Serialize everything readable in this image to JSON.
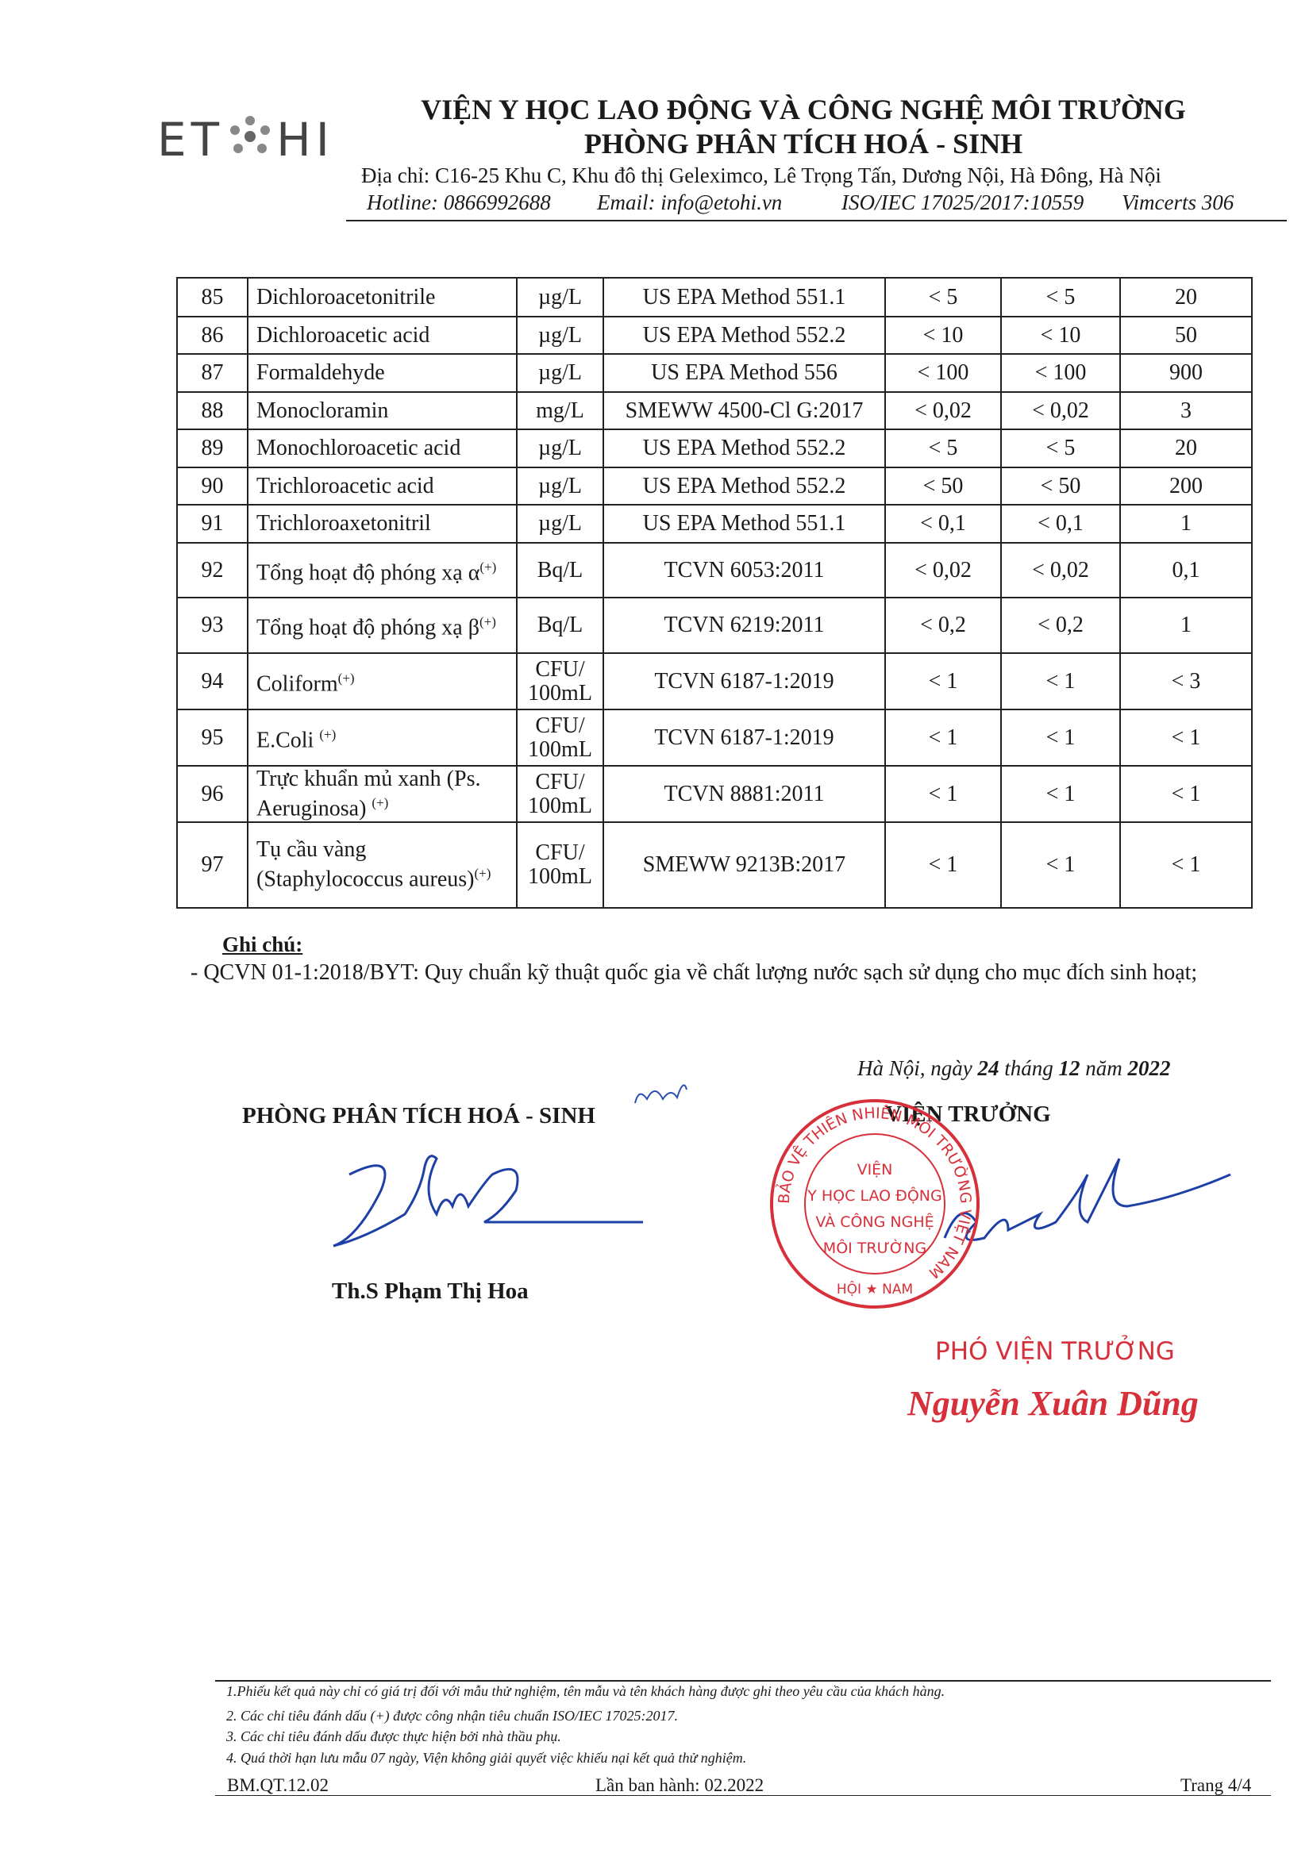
{
  "header": {
    "logo_left": "ET",
    "logo_right": "HI",
    "title": "VIỆN Y HỌC LAO ĐỘNG VÀ CÔNG NGHỆ MÔI TRƯỜNG",
    "subtitle": "PHÒNG PHÂN TÍCH HOÁ - SINH",
    "address": "Địa chỉ: C16-25 Khu C, Khu đô thị Geleximco, Lê Trọng Tấn, Dương Nội, Hà Đông, Hà Nội",
    "hotline": "Hotline: 0866992688",
    "email": "Email: info@etohi.vn",
    "iso": "ISO/IEC 17025/2017:10559",
    "vimcerts": "Vimcerts 306"
  },
  "table": {
    "rows": [
      {
        "no": "85",
        "name": "Dichloroacetonitrile",
        "unit": "µg/L",
        "method": "US EPA Method 551.1",
        "result1": "< 5",
        "result2": "< 5",
        "limit": "20"
      },
      {
        "no": "86",
        "name": "Dichloroacetic acid",
        "unit": "µg/L",
        "method": "US EPA Method 552.2",
        "result1": "< 10",
        "result2": "< 10",
        "limit": "50"
      },
      {
        "no": "87",
        "name": "Formaldehyde",
        "unit": "µg/L",
        "method": "US EPA Method 556",
        "result1": "< 100",
        "result2": "< 100",
        "limit": "900"
      },
      {
        "no": "88",
        "name": "Monocloramin",
        "unit": "mg/L",
        "method": "SMEWW 4500-Cl G:2017",
        "result1": "< 0,02",
        "result2": "< 0,02",
        "limit": "3"
      },
      {
        "no": "89",
        "name": "Monochloroacetic acid",
        "unit": "µg/L",
        "method": "US EPA Method 552.2",
        "result1": "< 5",
        "result2": "< 5",
        "limit": "20"
      },
      {
        "no": "90",
        "name": "Trichloroacetic acid",
        "unit": "µg/L",
        "method": "US EPA Method 552.2",
        "result1": "< 50",
        "result2": "< 50",
        "limit": "200"
      },
      {
        "no": "91",
        "name": "Trichloroaxetonitril",
        "unit": "µg/L",
        "method": "US EPA Method 551.1",
        "result1": "< 0,1",
        "result2": "< 0,1",
        "limit": "1"
      },
      {
        "no": "92",
        "name": "Tổng hoạt độ phóng xạ α",
        "sup": "(+)",
        "unit": "Bq/L",
        "method": "TCVN 6053:2011",
        "result1": "< 0,02",
        "result2": "< 0,02",
        "limit": "0,1"
      },
      {
        "no": "93",
        "name": "Tổng hoạt độ phóng xạ β",
        "sup": "(+)",
        "unit": "Bq/L",
        "method": "TCVN 6219:2011",
        "result1": "< 0,2",
        "result2": "< 0,2",
        "limit": "1"
      },
      {
        "no": "94",
        "name": "Coliform",
        "sup": "(+)",
        "unit": "CFU/ 100mL",
        "method": "TCVN 6187-1:2019",
        "result1": "< 1",
        "result2": "< 1",
        "limit": "< 3"
      },
      {
        "no": "95",
        "name": "E.Coli ",
        "sup": "(+)",
        "unit": "CFU/ 100mL",
        "method": "TCVN 6187-1:2019",
        "result1": "< 1",
        "result2": "< 1",
        "limit": "< 1"
      },
      {
        "no": "96",
        "name": "Trực khuẩn mủ xanh (Ps. Aeruginosa) ",
        "sup": "(+)",
        "unit": "CFU/ 100mL",
        "method": "TCVN 8881:2011",
        "result1": "< 1",
        "result2": "< 1",
        "limit": "< 1"
      },
      {
        "no": "97",
        "name": "Tụ cầu vàng (Staphylococcus aureus)",
        "sup": "(+)",
        "unit": "CFU/ 100mL",
        "method": "SMEWW 9213B:2017",
        "result1": "< 1",
        "result2": "< 1",
        "limit": "< 1"
      }
    ]
  },
  "notes": {
    "title": "Ghi chú:",
    "items": [
      "- QCVN 01-1:2018/BYT: Quy chuẩn kỹ thuật quốc gia về chất lượng nước sạch sử dụng cho mục đích sinh hoạt;"
    ]
  },
  "date": {
    "place": "Hà Nội, ngày ",
    "day": "24",
    "month_label": " tháng ",
    "month": "12",
    "year_label": " năm ",
    "year": "2022"
  },
  "signatures": {
    "left_title": "PHÒNG PHÂN TÍCH HOÁ - SINH",
    "left_name": "Th.S Phạm Thị Hoa",
    "right_title": "VIỆN TRƯỞNG",
    "right_role": "PHÓ VIỆN TRƯỞNG",
    "right_name": "Nguyễn Xuân Dũng"
  },
  "stamp": {
    "lines": [
      "VIỆN",
      "Y HỌC LAO ĐỘNG",
      "VÀ CÔNG NGHỆ",
      "MÔI TRƯỜNG"
    ],
    "ring": "BẢO VỆ THIÊN NHIÊN MÔI TRƯỜNG VIỆT NAM",
    "bottom": "HỘI ★ NAM"
  },
  "footer": {
    "notes": [
      "1.Phiếu kết quả này chỉ có giá trị đối với mẫu thử nghiệm, tên mẫu và tên khách hàng được ghi theo yêu cầu của khách hàng.",
      "2. Các chỉ tiêu đánh dấu (+) được công nhận tiêu chuẩn ISO/IEC 17025:2017.",
      "3. Các chỉ tiêu đánh dấu  được thực hiện bởi nhà thầu phụ.",
      "4. Quá thời hạn lưu mẫu 07 ngày, Viện không giải quyết việc khiếu nại kết quả thử nghiệm."
    ],
    "code": "BM.QT.12.02",
    "issue": "Lần ban hành: 02.2022",
    "page": "Trang 4/4"
  }
}
